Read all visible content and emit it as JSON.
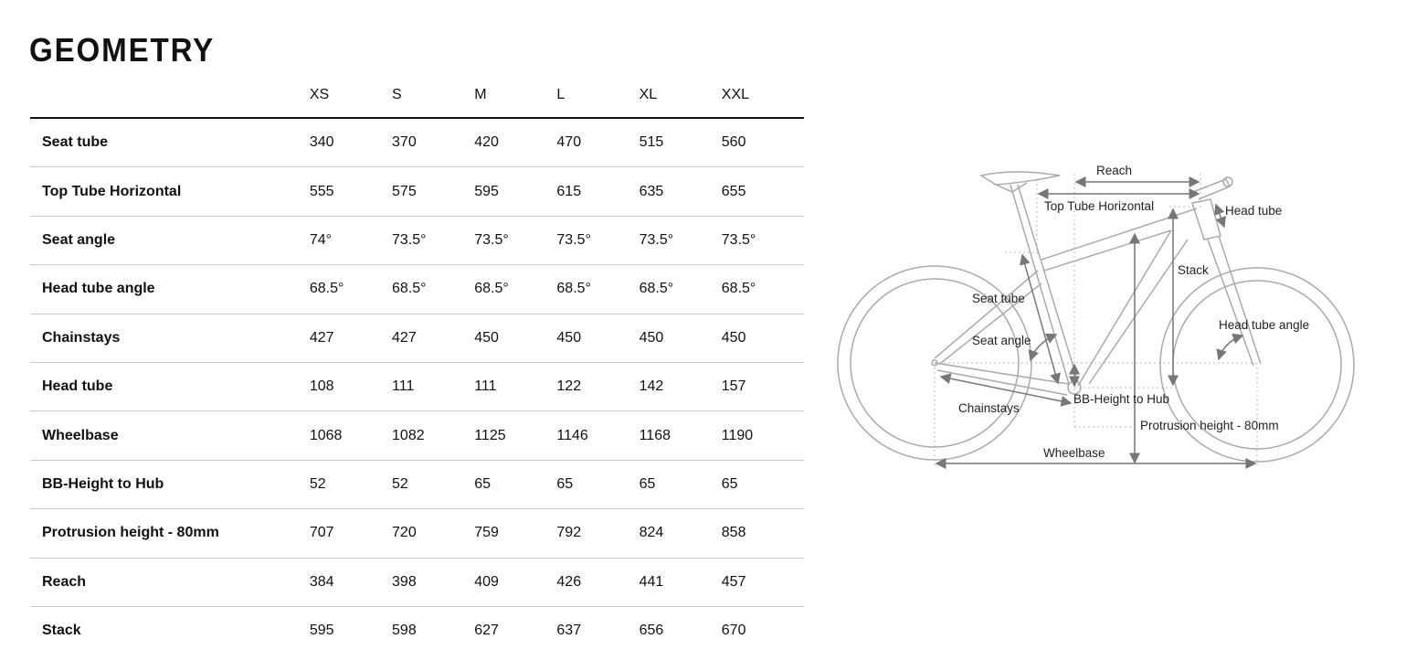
{
  "title": "GEOMETRY",
  "table": {
    "sizes": [
      "XS",
      "S",
      "M",
      "L",
      "XL",
      "XXL"
    ],
    "rows": [
      {
        "label": "Seat tube",
        "values": [
          "340",
          "370",
          "420",
          "470",
          "515",
          "560"
        ]
      },
      {
        "label": "Top Tube Horizontal",
        "values": [
          "555",
          "575",
          "595",
          "615",
          "635",
          "655"
        ]
      },
      {
        "label": "Seat angle",
        "values": [
          "74°",
          "73.5°",
          "73.5°",
          "73.5°",
          "73.5°",
          "73.5°"
        ]
      },
      {
        "label": "Head tube angle",
        "values": [
          "68.5°",
          "68.5°",
          "68.5°",
          "68.5°",
          "68.5°",
          "68.5°"
        ]
      },
      {
        "label": "Chainstays",
        "values": [
          "427",
          "427",
          "450",
          "450",
          "450",
          "450"
        ]
      },
      {
        "label": "Head tube",
        "values": [
          "108",
          "111",
          "111",
          "122",
          "142",
          "157"
        ]
      },
      {
        "label": "Wheelbase",
        "values": [
          "1068",
          "1082",
          "1125",
          "1146",
          "1168",
          "1190"
        ]
      },
      {
        "label": "BB-Height to Hub",
        "values": [
          "52",
          "52",
          "65",
          "65",
          "65",
          "65"
        ]
      },
      {
        "label": "Protrusion height - 80mm",
        "values": [
          "707",
          "720",
          "759",
          "792",
          "824",
          "858"
        ]
      },
      {
        "label": "Reach",
        "values": [
          "384",
          "398",
          "409",
          "426",
          "441",
          "457"
        ]
      },
      {
        "label": "Stack",
        "values": [
          "595",
          "598",
          "627",
          "637",
          "656",
          "670"
        ]
      }
    ]
  },
  "diagram": {
    "labels": {
      "reach": "Reach",
      "top_tube": "Top Tube Horizontal",
      "head_tube": "Head tube",
      "stack": "Stack",
      "seat_tube": "Seat tube",
      "seat_angle": "Seat angle",
      "head_tube_angle": "Head tube angle",
      "bb_height": "BB-Height to Hub",
      "chainstays": "Chainstays",
      "protrusion": "Protrusion height - 80mm",
      "wheelbase": "Wheelbase"
    }
  }
}
